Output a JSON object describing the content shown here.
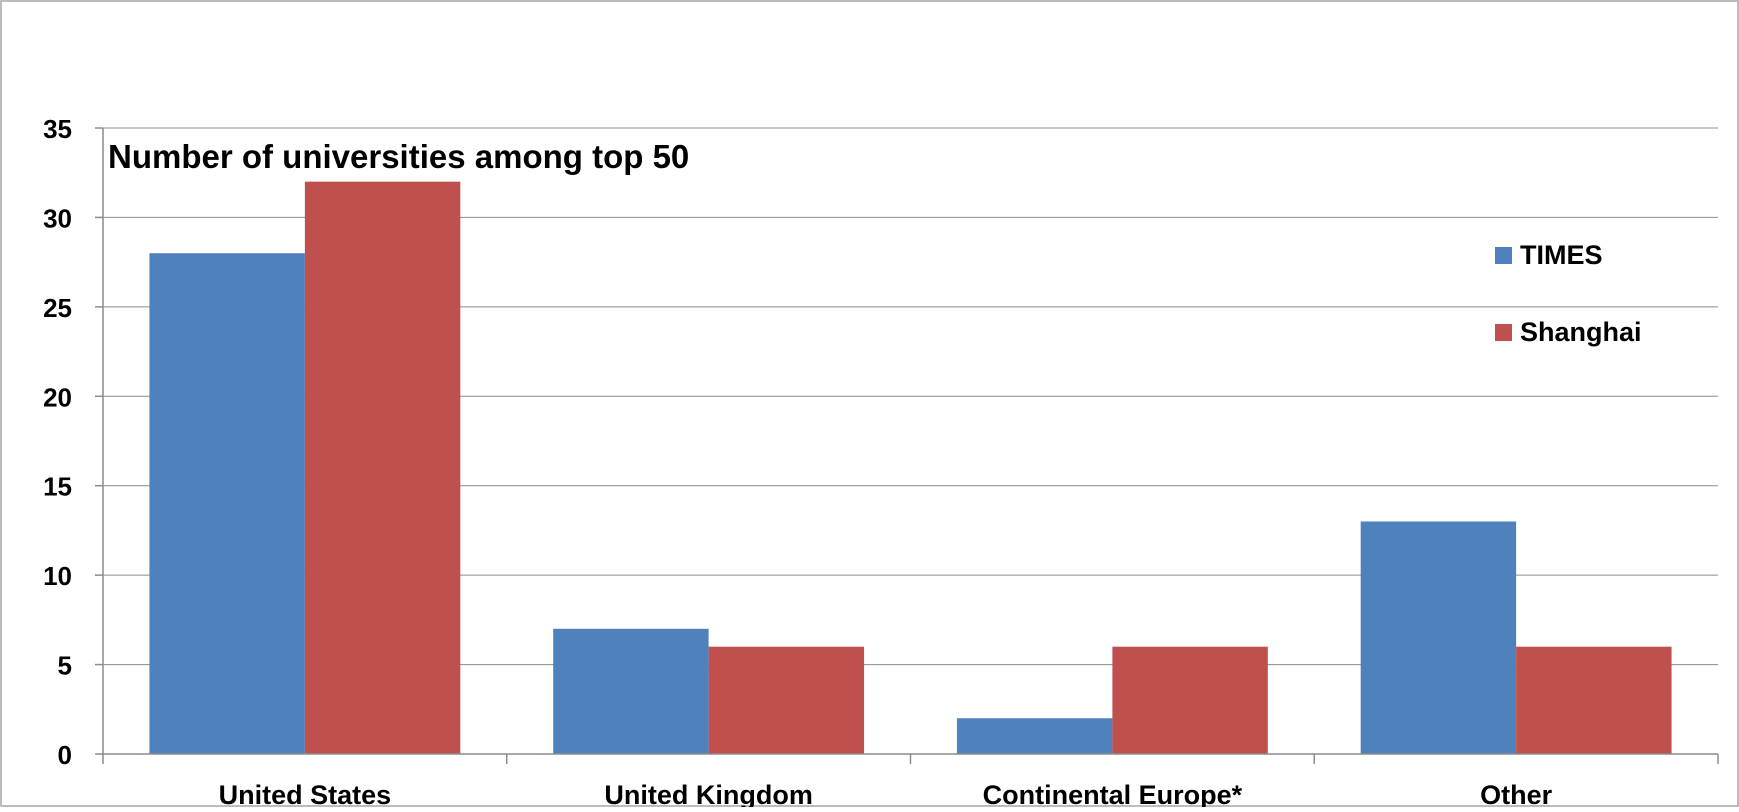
{
  "chart_data": {
    "type": "bar",
    "title": "Number of universities among top 50",
    "xlabel": "",
    "ylabel": "",
    "categories": [
      "United States",
      "United Kingdom",
      "Continental Europe*",
      "Other"
    ],
    "series": [
      {
        "name": "TIMES",
        "color": "#4F81BD",
        "values": [
          28,
          7,
          2,
          13
        ]
      },
      {
        "name": "Shanghai",
        "color": "#C0504D",
        "values": [
          32,
          6,
          6,
          6
        ]
      }
    ],
    "ylim": [
      0,
      35
    ],
    "yticks": [
      0,
      5,
      10,
      15,
      20,
      25,
      30,
      35
    ],
    "grid": true,
    "legend_position": "right"
  }
}
